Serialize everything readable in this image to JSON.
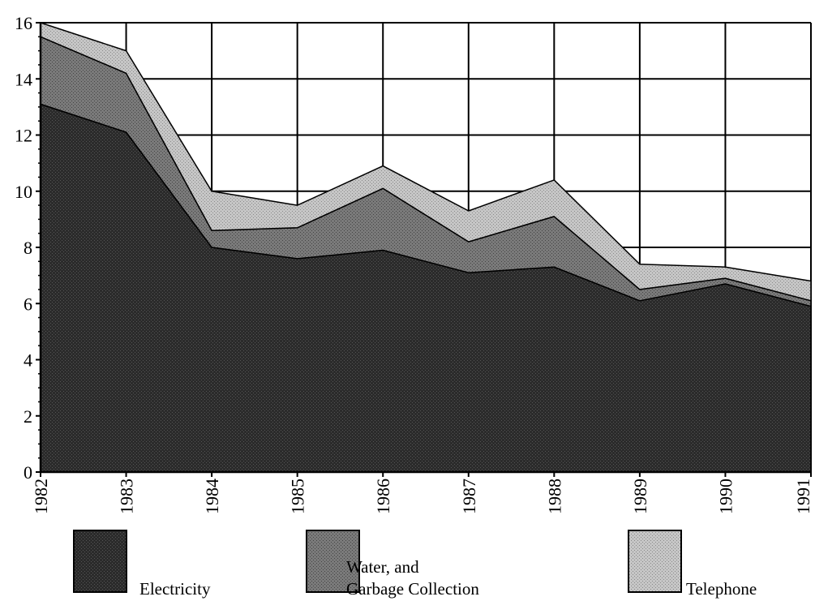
{
  "chart_data": {
    "type": "area",
    "stacked": true,
    "x": [
      "1982",
      "1983",
      "1984",
      "1985",
      "1986",
      "1987",
      "1988",
      "1989",
      "1990",
      "1991"
    ],
    "series": [
      {
        "name": "Electricity",
        "values": [
          13.1,
          12.1,
          8.0,
          7.6,
          7.9,
          7.1,
          7.3,
          6.1,
          6.7,
          5.9
        ],
        "color": "#2b2b2b"
      },
      {
        "name": "Water, and Garbage Collection",
        "values": [
          2.4,
          2.1,
          0.6,
          1.1,
          2.2,
          1.1,
          1.8,
          0.4,
          0.2,
          0.2
        ],
        "color": "#777777"
      },
      {
        "name": "Telephone",
        "values": [
          0.5,
          0.8,
          1.4,
          0.8,
          0.8,
          1.1,
          1.3,
          0.9,
          0.4,
          0.7
        ],
        "color": "#c2c2c2"
      }
    ],
    "ylim": [
      0,
      16
    ],
    "yticks": [
      "0",
      "2",
      "4",
      "6",
      "8",
      "10",
      "12",
      "14",
      "16"
    ],
    "grid": true,
    "legend_position": "bottom",
    "title": "",
    "xlabel": "",
    "ylabel": ""
  }
}
